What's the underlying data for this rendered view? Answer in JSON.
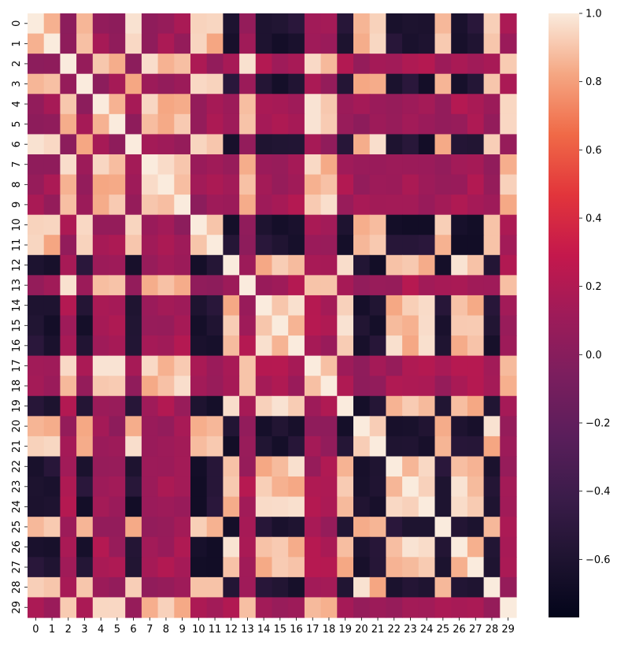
{
  "chart_data": {
    "type": "heatmap",
    "title": "",
    "xlabel": "",
    "ylabel": "",
    "x_labels": [
      "0",
      "1",
      "2",
      "3",
      "4",
      "5",
      "6",
      "7",
      "8",
      "9",
      "10",
      "11",
      "12",
      "13",
      "14",
      "15",
      "16",
      "17",
      "18",
      "19",
      "20",
      "21",
      "22",
      "23",
      "24",
      "25",
      "26",
      "27",
      "28",
      "29"
    ],
    "y_labels": [
      "0",
      "1",
      "2",
      "3",
      "4",
      "5",
      "6",
      "7",
      "8",
      "9",
      "10",
      "11",
      "12",
      "13",
      "14",
      "15",
      "16",
      "17",
      "18",
      "19",
      "20",
      "21",
      "22",
      "23",
      "24",
      "25",
      "26",
      "27",
      "28",
      "29"
    ],
    "colorbar": {
      "colormap": "rocket",
      "vmin": -0.77,
      "vmax": 1.0,
      "ticks": [
        1.0,
        0.8,
        0.6,
        0.4,
        0.2,
        0.0,
        -0.2,
        -0.4,
        -0.6
      ],
      "tick_labels": [
        "1.0",
        "0.8",
        "0.6",
        "0.4",
        "0.2",
        "0.0",
        "−0.2",
        "−0.4",
        "−0.6"
      ]
    },
    "groups": {
      "A": [
        0,
        1,
        3,
        6,
        10,
        11,
        20,
        21,
        25,
        28
      ],
      "B": [
        2,
        4,
        5,
        7,
        8,
        9,
        13,
        17,
        18,
        29
      ],
      "C": [
        12,
        14,
        15,
        16,
        19,
        22,
        23,
        24,
        26,
        27
      ]
    },
    "group_correlation": {
      "within": 0.9,
      "A_B": 0.1,
      "A_C": -0.6,
      "B_C": 0.15
    },
    "grid": false,
    "legend": "colorbar-right"
  }
}
